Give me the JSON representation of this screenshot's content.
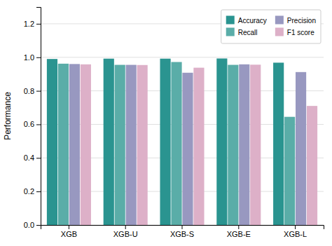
{
  "chart_data": {
    "type": "bar",
    "ylabel": "Performance",
    "categories": [
      "XGB",
      "XGB-U",
      "XGB-S",
      "XGB-E",
      "XGB-L"
    ],
    "series": [
      {
        "name": "Accuracy",
        "color": "#2a9490",
        "values": [
          0.99,
          0.992,
          0.992,
          0.993,
          0.968
        ]
      },
      {
        "name": "Recall",
        "color": "#5aada8",
        "values": [
          0.962,
          0.955,
          0.972,
          0.955,
          0.645
        ]
      },
      {
        "name": "Precision",
        "color": "#9898c0",
        "values": [
          0.96,
          0.955,
          0.908,
          0.958,
          0.912
        ]
      },
      {
        "name": "F1 score",
        "color": "#ddb0c8",
        "values": [
          0.958,
          0.954,
          0.938,
          0.956,
          0.71
        ]
      }
    ],
    "ylim": [
      0.0,
      1.3
    ],
    "yticks": [
      {
        "value": 0.0,
        "label": "0.0"
      },
      0.2,
      0.4,
      0.6,
      0.8,
      {
        "value": 1.0,
        "label": "1.0"
      },
      1.2
    ],
    "grid": true,
    "legend": "upper right"
  }
}
